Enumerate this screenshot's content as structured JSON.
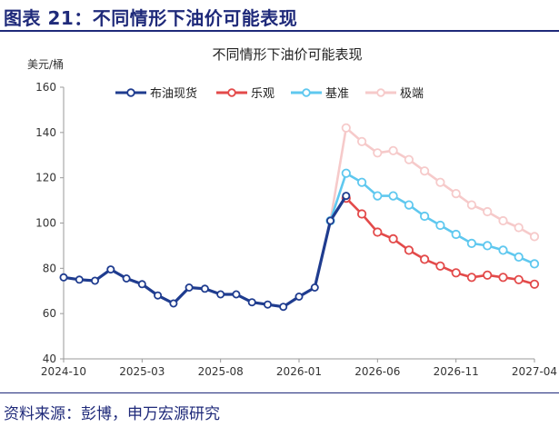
{
  "figure": {
    "title": "图表 21：不同情形下油价可能表现",
    "source": "资料来源：彭博，申万宏源研究"
  },
  "chart_data": {
    "type": "line",
    "title": "不同情形下油价可能表现",
    "ylabel": "美元/桶",
    "xlabel": "",
    "ylim": [
      40,
      160
    ],
    "yticks": [
      "40",
      "60",
      "80",
      "100",
      "120",
      "140",
      "160"
    ],
    "xlim": [
      "2024-10",
      "2027-04"
    ],
    "xticks": [
      "2024-10",
      "2025-03",
      "2025-08",
      "2026-01",
      "2026-06",
      "2026-11",
      "2027-04"
    ],
    "grid": false,
    "legend": "top",
    "series": [
      {
        "name": "布油现货",
        "color": "#1f3c8f",
        "x": [
          "2024-10",
          "2024-11",
          "2024-12",
          "2025-01",
          "2025-02",
          "2025-03",
          "2025-04",
          "2025-05",
          "2025-06",
          "2025-07",
          "2025-08",
          "2025-09",
          "2025-10",
          "2025-11",
          "2025-12",
          "2026-01",
          "2026-02",
          "2026-03",
          "2026-04"
        ],
        "values": [
          76,
          75,
          74.5,
          79.5,
          75.5,
          73,
          68,
          64.5,
          71.5,
          71,
          68.5,
          68.5,
          65,
          64,
          63,
          67.5,
          71.5,
          101,
          112
        ]
      },
      {
        "name": "乐观",
        "color": "#e34a4a",
        "x": [
          "2026-04",
          "2026-05",
          "2026-06",
          "2026-07",
          "2026-08",
          "2026-09",
          "2026-10",
          "2026-11",
          "2026-12",
          "2027-01",
          "2027-02",
          "2027-03",
          "2027-04"
        ],
        "values": [
          111,
          104,
          96,
          93,
          88,
          84,
          81,
          78,
          76,
          77,
          76,
          75,
          73
        ]
      },
      {
        "name": "基准",
        "color": "#5fc8ef",
        "x": [
          "2026-03",
          "2026-04",
          "2026-05",
          "2026-06",
          "2026-07",
          "2026-08",
          "2026-09",
          "2026-10",
          "2026-11",
          "2026-12",
          "2027-01",
          "2027-02",
          "2027-03",
          "2027-04"
        ],
        "values": [
          101,
          122,
          118,
          112,
          112,
          108,
          103,
          99,
          95,
          91,
          90,
          88,
          85,
          82
        ]
      },
      {
        "name": "极端",
        "color": "#f6caca",
        "x": [
          "2026-03",
          "2026-04",
          "2026-05",
          "2026-06",
          "2026-07",
          "2026-08",
          "2026-09",
          "2026-10",
          "2026-11",
          "2026-12",
          "2027-01",
          "2027-02",
          "2027-03",
          "2027-04"
        ],
        "values": [
          101,
          142,
          136,
          131,
          132,
          128,
          123,
          118,
          113,
          108,
          105,
          101,
          98,
          94
        ]
      }
    ]
  }
}
